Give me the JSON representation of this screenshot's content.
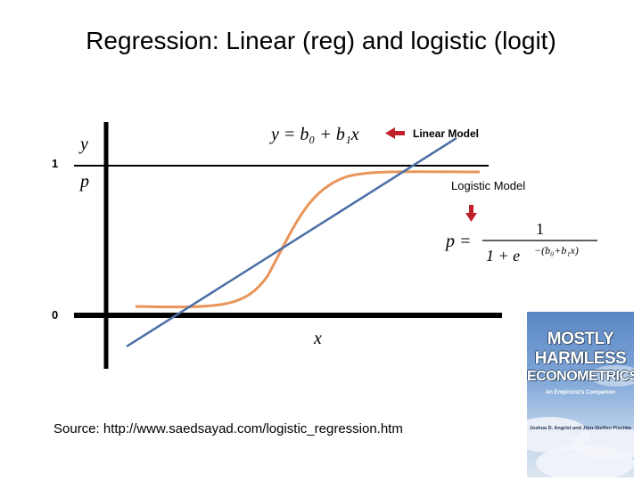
{
  "slide": {
    "title": "Regression: Linear (reg) and logistic (logit)",
    "source": "Source: http://www.saedsayad.com/logistic_regression.htm"
  },
  "diagram": {
    "tick_one": "1",
    "tick_zero": "0",
    "y_axis_label": "y",
    "p_axis_label": "p",
    "x_axis_label": "x",
    "linear_equation": "y = b₀ + b₁x",
    "linear_label": "Linear Model",
    "logistic_label": "Logistic Model",
    "logistic_equation": {
      "lhs": "p =",
      "numerator": "1",
      "denominator_base": "1 + e",
      "denominator_exponent": "−(b₀+b₁x)"
    },
    "colors": {
      "axes": "#000000",
      "linear_line": "#4a6fa5",
      "logistic_curve": "#e8955a",
      "arrow": "#c0202a"
    }
  },
  "book_cover": {
    "title_line1": "MOSTLY",
    "title_line2": "HARMLESS",
    "title_line3": "ECONOMETRICS",
    "subtitle": "An Empiricist's Companion",
    "authors": "Joshua D. Angrist and Jörn-Steffen Pischke",
    "colors": {
      "sky": "#6f98cf",
      "text_outline": "#34506f"
    }
  }
}
